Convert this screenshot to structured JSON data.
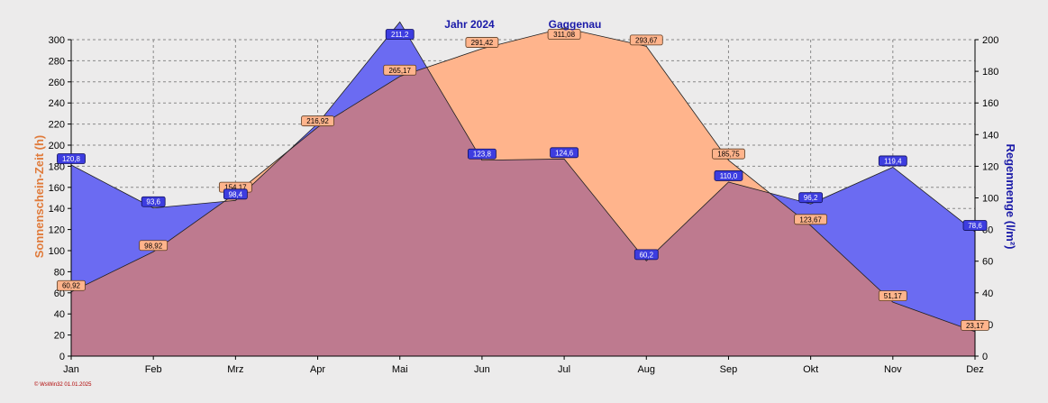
{
  "chart_data": {
    "type": "area",
    "title": "Jahr  2024",
    "location": "Gaggenau",
    "categories": [
      "Jan",
      "Feb",
      "Mrz",
      "Apr",
      "Mai",
      "Jun",
      "Jul",
      "Aug",
      "Sep",
      "Okt",
      "Nov",
      "Dez"
    ],
    "left_axis": {
      "label": "Sonnenschein-Zeit  (h)",
      "min": 0,
      "max": 300,
      "ticks": [
        0,
        20,
        40,
        60,
        80,
        100,
        120,
        140,
        160,
        180,
        200,
        220,
        240,
        260,
        280,
        300
      ]
    },
    "right_axis": {
      "label": "Regenmenge  (l/m²)",
      "min": 0,
      "max": 200,
      "ticks": [
        0,
        20,
        40,
        60,
        80,
        100,
        120,
        140,
        160,
        180,
        200
      ]
    },
    "grid": true,
    "series": [
      {
        "axis": "left",
        "color": "#ffb48c",
        "values": [
          60.92,
          98.92,
          154.17,
          216.92,
          265.17,
          291.42,
          311.08,
          293.67,
          185.75,
          123.67,
          51.17,
          23.17
        ],
        "labels": [
          "60,92",
          "98,92",
          "154,17",
          "216,92",
          "265,17",
          "291,42",
          "311,08",
          "293,67",
          "185,75",
          "123,67",
          "51,17",
          "23,17"
        ]
      },
      {
        "axis": "right",
        "color": "#6b6bf2",
        "values": [
          120.8,
          93.6,
          98.4,
          147.0,
          211.2,
          123.8,
          124.6,
          60.2,
          110.0,
          96.2,
          119.4,
          78.6
        ],
        "labels": [
          "120,8",
          "93,6",
          "98,4",
          "",
          "211,2",
          "123,8",
          "124,6",
          "60,2",
          "110,0",
          "96,2",
          "119,4",
          "78,6"
        ]
      }
    ],
    "footer": "© WsWin32  01.01.2025"
  }
}
